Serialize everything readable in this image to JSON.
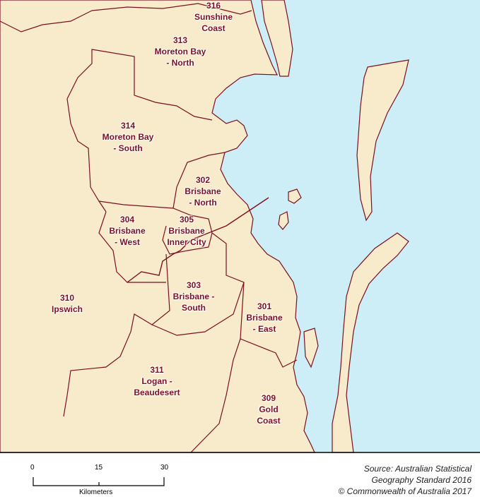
{
  "colors": {
    "land": "#f8ebcb",
    "sea": "#cdeef6",
    "boundary": "#7b1020",
    "frame": "#000000"
  },
  "regions": [
    {
      "code": "316",
      "name": [
        "Sunshine",
        "Coast"
      ]
    },
    {
      "code": "313",
      "name": [
        "Moreton Bay",
        "- North"
      ]
    },
    {
      "code": "314",
      "name": [
        "Moreton Bay",
        "- South"
      ]
    },
    {
      "code": "302",
      "name": [
        "Brisbane",
        "- North"
      ]
    },
    {
      "code": "304",
      "name": [
        "Brisbane",
        "- West"
      ]
    },
    {
      "code": "305",
      "name": [
        "Brisbane",
        "Inner City"
      ]
    },
    {
      "code": "310",
      "name": [
        "Ipswich"
      ]
    },
    {
      "code": "303",
      "name": [
        "Brisbane -",
        "South"
      ]
    },
    {
      "code": "301",
      "name": [
        "Brisbane",
        "- East"
      ]
    },
    {
      "code": "311",
      "name": [
        "Logan -",
        "Beaudesert"
      ]
    },
    {
      "code": "309",
      "name": [
        "Gold",
        "Coast"
      ]
    }
  ],
  "scale_bar": {
    "ticks": [
      "0",
      "15",
      "30"
    ],
    "unit": "Kilometers"
  },
  "source": [
    "Source: Australian Statistical",
    "Geography Standard 2016",
    "© Commonwealth of Australia 2017"
  ]
}
